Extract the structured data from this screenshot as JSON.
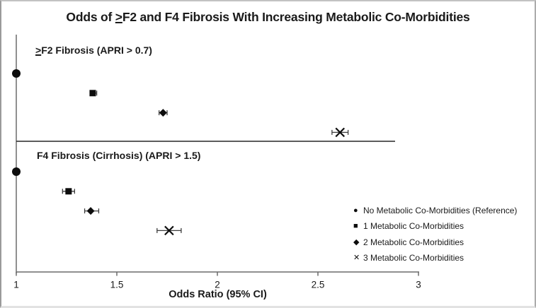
{
  "title": {
    "pre": "Odds of ",
    "geq": ">",
    "rest": "F2 and F4 Fibrosis With Increasing Metabolic Co-Morbidities"
  },
  "xlabel": "Odds Ratio (95% CI)",
  "legend": {
    "items": [
      {
        "icon": "circle-marker-icon",
        "glyph": "●",
        "label": "No Metabolic Co-Morbidities (Reference)"
      },
      {
        "icon": "square-marker-icon",
        "glyph": "■",
        "label": "1 Metabolic Co-Morbidities"
      },
      {
        "icon": "diamond-marker-icon",
        "glyph": "◆",
        "label": "2 Metabolic Co-Morbidities"
      },
      {
        "icon": "x-marker-icon",
        "glyph": "✕",
        "label": "3 Metabolic Co-Morbidities"
      }
    ]
  },
  "chart_data": {
    "type": "scatter",
    "subtype": "forest-plot",
    "title": "Odds of ≥F2 and F4 Fibrosis With Increasing Metabolic Co-Morbidities",
    "xlabel": "Odds Ratio (95% CI)",
    "xlim": [
      1,
      3.05
    ],
    "x_ticks": [
      1,
      1.5,
      2,
      2.5,
      3
    ],
    "x_tick_labels": [
      "1",
      "1.5",
      "2",
      "2.5",
      "3"
    ],
    "grid": false,
    "legend_position": "right-bottom",
    "panels": [
      {
        "label": "≥F2 Fibrosis (APRI > 0.7)",
        "label_geq": ">",
        "label_rest": "F2 Fibrosis (APRI > 0.7)",
        "rows": [
          {
            "group": "No Metabolic Co-Morbidities (Reference)",
            "marker": "circle",
            "or": 1.0,
            "ci_low": null,
            "ci_high": null
          },
          {
            "group": "1 Metabolic Co-Morbidities",
            "marker": "square",
            "or": 1.38,
            "ci_low": 1.37,
            "ci_high": 1.4
          },
          {
            "group": "2 Metabolic Co-Morbidities",
            "marker": "diamond",
            "or": 1.73,
            "ci_low": 1.71,
            "ci_high": 1.75
          },
          {
            "group": "3 Metabolic Co-Morbidities",
            "marker": "x",
            "or": 2.61,
            "ci_low": 2.57,
            "ci_high": 2.65
          }
        ]
      },
      {
        "label": "F4 Fibrosis (Cirrhosis) (APRI > 1.5)",
        "label_geq": "",
        "label_rest": "F4 Fibrosis (Cirrhosis) (APRI > 1.5)",
        "rows": [
          {
            "group": "No Metabolic Co-Morbidities (Reference)",
            "marker": "circle",
            "or": 1.0,
            "ci_low": null,
            "ci_high": null
          },
          {
            "group": "1 Metabolic Co-Morbidities",
            "marker": "square",
            "or": 1.26,
            "ci_low": 1.23,
            "ci_high": 1.29
          },
          {
            "group": "2 Metabolic Co-Morbidities",
            "marker": "diamond",
            "or": 1.37,
            "ci_low": 1.34,
            "ci_high": 1.41
          },
          {
            "group": "3 Metabolic Co-Morbidities",
            "marker": "x",
            "or": 1.76,
            "ci_low": 1.7,
            "ci_high": 1.82
          }
        ]
      }
    ]
  }
}
